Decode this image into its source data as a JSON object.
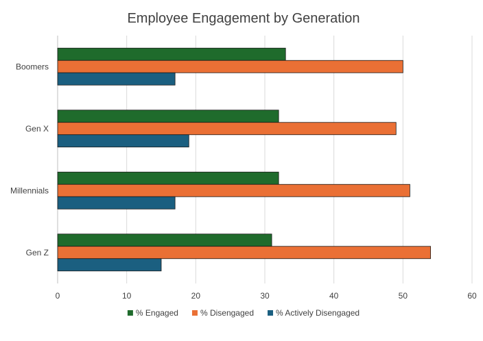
{
  "chart_data": {
    "type": "bar",
    "orientation": "horizontal",
    "title": "Employee Engagement by Generation",
    "xlabel": "",
    "ylabel": "",
    "categories": [
      "Boomers",
      "Gen X",
      "Millennials",
      "Gen Z"
    ],
    "series": [
      {
        "name": "% Engaged",
        "values": [
          33,
          32,
          32,
          31
        ],
        "color": "#1f6b2c"
      },
      {
        "name": "% Disengaged",
        "values": [
          50,
          49,
          51,
          54
        ],
        "color": "#ea7035"
      },
      {
        "name": "% Actively Disengaged",
        "values": [
          17,
          19,
          17,
          15
        ],
        "color": "#1b5f80"
      }
    ],
    "xlim": [
      0,
      60
    ],
    "xticks": [
      0,
      10,
      20,
      30,
      40,
      50,
      60
    ],
    "grid": true,
    "legend": "bottom"
  }
}
